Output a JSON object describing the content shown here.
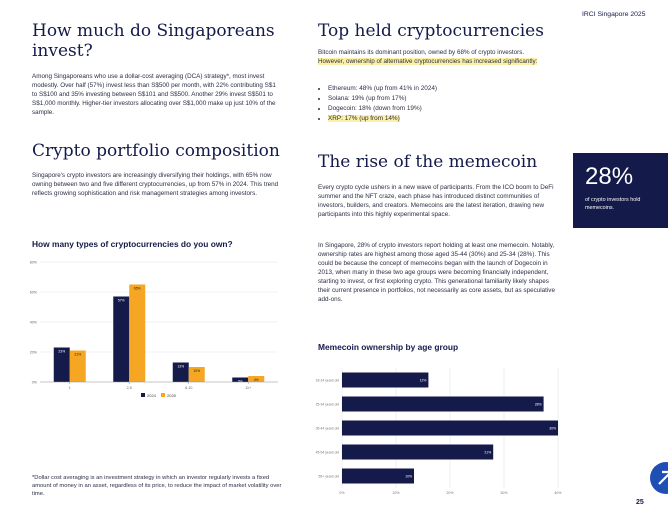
{
  "header": {
    "report": "IRCI Singapore 2025",
    "page_number": "25"
  },
  "left": {
    "invest_title": "How much do Singaporeans invest?",
    "invest_body": "Among Singaporeans who use a dollar-cost averaging (DCA) strategy*, most invest modestly. Over half (57%) invest less than S$500 per month, with 22% contributing S$1 to S$100 and 35% investing between S$101 and S$500. Another 29% invest S$501 to S$1,000 monthly. Higher-tier investors allocating over S$1,000 make up just 10% of the sample.",
    "portfolio_title": "Crypto portfolio composition",
    "portfolio_body": "Singapore's crypto investors are increasingly diversifying their holdings, with 65% now owning between two and five different cryptocurrencies, up from 57% in 2024. This trend reflects growing sophistication and risk management strategies among investors.",
    "footnote": "*Dollar cost averaging is an investment strategy in which an investor regularly invests a fixed amount of money in an asset, regardless of its price, to reduce the impact of market volatility over time."
  },
  "right": {
    "top_title": "Top held cryptocurrencies",
    "top_body_plain": "Bitcoin maintains its dominant position, owned by 68% of crypto investors. ",
    "top_body_highlight": "However, ownership of alternative cryptocurrencies has increased significantly:",
    "bullets": [
      "Ethereum: 48% (up from 41% in 2024)",
      "Solana: 19% (up from 17%)",
      "Dogecoin: 18% (down from 19%)",
      "XRP: 17% (up from 14%)"
    ],
    "meme_title": "The rise of the memecoin",
    "meme_body1": "Every crypto cycle ushers in a new wave of participants. From the ICO boom to DeFi summer and the NFT craze, each phase has introduced distinct communities of investors, builders, and creators. Memecoins are the latest iteration, drawing new participants into this highly experimental space.",
    "meme_body2": "In Singapore, 28% of crypto investors report holding at least one memecoin. Notably, ownership rates are highest among those aged 35-44 (30%) and 25-34 (28%). This could be because the concept of memecoins began with the launch of Dogecoin in 2013, when many in these two age groups were becoming financially independent, starting to invest, or first exploring crypto. This generational familiarity likely shapes their current presence in portfolios, not necessarily as core assets, but as speculative add-ons."
  },
  "callout": {
    "value": "28%",
    "caption": "of crypto investors hold memecoins."
  },
  "colors": {
    "navy": "#141a4a",
    "orange": "#f5a623",
    "highlight": "#fbf0a4",
    "accent_blue": "#1f4fb5"
  },
  "fab_icon": "rocket-icon",
  "chart_data": [
    {
      "type": "bar",
      "title": "How many types of cryptocurrencies do you own?",
      "categories": [
        "1",
        "2-5",
        "6-10",
        "11+"
      ],
      "series": [
        {
          "name": "2024",
          "values": [
            23,
            57,
            13,
            3
          ]
        },
        {
          "name": "2025",
          "values": [
            21,
            65,
            10,
            4
          ]
        }
      ],
      "value_labels": [
        [
          "23%",
          "57%",
          "13%",
          "3%"
        ],
        [
          "21%",
          "65%",
          "10%",
          "4%"
        ]
      ],
      "ytick_labels": [
        "0%",
        "20%",
        "40%",
        "60%",
        "80%"
      ],
      "ylim": [
        0,
        80
      ],
      "legend": [
        "2024",
        "2025"
      ]
    },
    {
      "type": "bar",
      "orientation": "horizontal",
      "title": "Memecoin ownership by age group",
      "categories": [
        "18-24 years old",
        "25-34 years old",
        "35-44 years old",
        "45-54 years old",
        "55+ years old"
      ],
      "values": [
        12,
        28,
        30,
        21,
        10
      ],
      "value_labels": [
        "12%",
        "28%",
        "30%",
        "21%",
        "10%"
      ],
      "xtick_labels": [
        "0%",
        "10%",
        "20%",
        "30%",
        "40%"
      ],
      "xlim": [
        0,
        30
      ]
    }
  ]
}
